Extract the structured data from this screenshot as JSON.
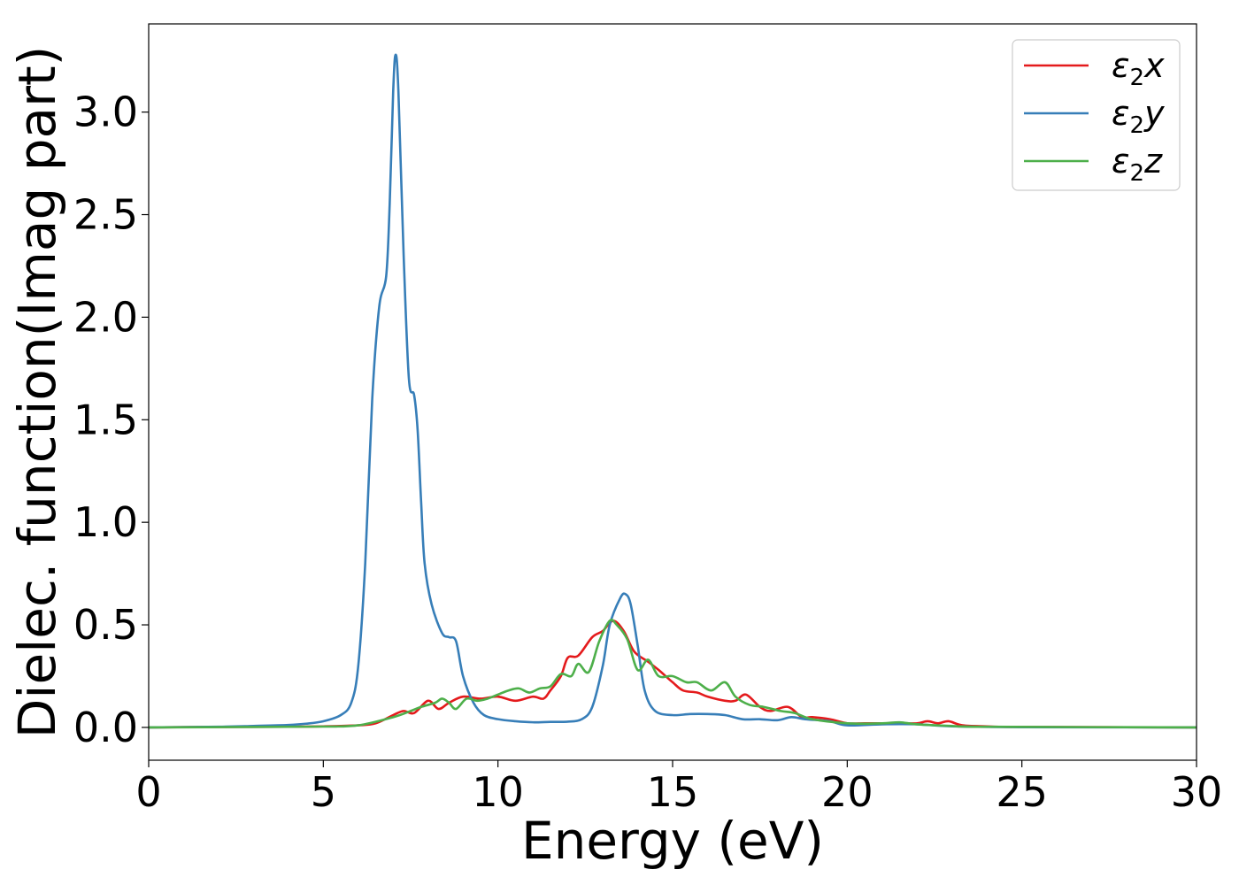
{
  "chart_data": {
    "type": "line",
    "title": "",
    "xlabel": "Energy (eV)",
    "ylabel": "Dielec. function(Imag part)",
    "xlim": [
      0,
      30
    ],
    "ylim": [
      -0.16,
      3.43
    ],
    "xticks": [
      0,
      5,
      10,
      15,
      20,
      25,
      30
    ],
    "xtick_labels": [
      "0",
      "5",
      "10",
      "15",
      "20",
      "25",
      "30"
    ],
    "yticks": [
      0.0,
      0.5,
      1.0,
      1.5,
      2.0,
      2.5,
      3.0
    ],
    "ytick_labels": [
      "0.0",
      "0.5",
      "1.0",
      "1.5",
      "2.0",
      "2.5",
      "3.0"
    ],
    "grid": false,
    "legend_position": "top-right",
    "series": [
      {
        "name": "ε2x",
        "name_base": "ε",
        "name_sub": "2",
        "name_suffix": "x",
        "color": "#e41a1c",
        "points": [
          [
            0,
            0
          ],
          [
            2,
            0.002
          ],
          [
            4,
            0.003
          ],
          [
            5,
            0.005
          ],
          [
            6,
            0.01
          ],
          [
            6.5,
            0.02
          ],
          [
            7,
            0.06
          ],
          [
            7.3,
            0.08
          ],
          [
            7.6,
            0.07
          ],
          [
            8,
            0.13
          ],
          [
            8.3,
            0.09
          ],
          [
            8.6,
            0.12
          ],
          [
            9,
            0.15
          ],
          [
            9.5,
            0.14
          ],
          [
            10,
            0.15
          ],
          [
            10.5,
            0.13
          ],
          [
            11,
            0.15
          ],
          [
            11.3,
            0.14
          ],
          [
            11.5,
            0.18
          ],
          [
            11.8,
            0.25
          ],
          [
            12,
            0.34
          ],
          [
            12.3,
            0.35
          ],
          [
            12.7,
            0.44
          ],
          [
            13,
            0.47
          ],
          [
            13.3,
            0.52
          ],
          [
            13.6,
            0.47
          ],
          [
            13.9,
            0.37
          ],
          [
            14.3,
            0.32
          ],
          [
            14.6,
            0.28
          ],
          [
            15,
            0.22
          ],
          [
            15.3,
            0.18
          ],
          [
            15.7,
            0.17
          ],
          [
            16,
            0.15
          ],
          [
            16.5,
            0.13
          ],
          [
            16.8,
            0.13
          ],
          [
            17.1,
            0.16
          ],
          [
            17.5,
            0.1
          ],
          [
            17.8,
            0.08
          ],
          [
            18.3,
            0.1
          ],
          [
            18.7,
            0.05
          ],
          [
            19,
            0.05
          ],
          [
            19.5,
            0.04
          ],
          [
            20,
            0.02
          ],
          [
            20.5,
            0.02
          ],
          [
            21,
            0.02
          ],
          [
            21.5,
            0.02
          ],
          [
            22,
            0.02
          ],
          [
            22.3,
            0.03
          ],
          [
            22.6,
            0.02
          ],
          [
            22.9,
            0.03
          ],
          [
            23.3,
            0.01
          ],
          [
            24,
            0.005
          ],
          [
            25,
            0.002
          ],
          [
            30,
            0
          ]
        ]
      },
      {
        "name": "ε2y",
        "name_base": "ε",
        "name_sub": "2",
        "name_suffix": "y",
        "color": "#377eb8",
        "points": [
          [
            0,
            0
          ],
          [
            2,
            0.003
          ],
          [
            3,
            0.007
          ],
          [
            4,
            0.012
          ],
          [
            4.5,
            0.018
          ],
          [
            5,
            0.03
          ],
          [
            5.5,
            0.06
          ],
          [
            5.8,
            0.12
          ],
          [
            6,
            0.3
          ],
          [
            6.2,
            0.8
          ],
          [
            6.4,
            1.6
          ],
          [
            6.6,
            2.05
          ],
          [
            6.8,
            2.2
          ],
          [
            6.9,
            2.55
          ],
          [
            7,
            3.1
          ],
          [
            7.07,
            3.28
          ],
          [
            7.15,
            3.1
          ],
          [
            7.3,
            2.3
          ],
          [
            7.45,
            1.7
          ],
          [
            7.6,
            1.62
          ],
          [
            7.7,
            1.45
          ],
          [
            7.8,
            1.1
          ],
          [
            7.9,
            0.8
          ],
          [
            8.1,
            0.6
          ],
          [
            8.4,
            0.46
          ],
          [
            8.6,
            0.44
          ],
          [
            8.8,
            0.42
          ],
          [
            9,
            0.25
          ],
          [
            9.3,
            0.12
          ],
          [
            9.6,
            0.06
          ],
          [
            10,
            0.04
          ],
          [
            10.5,
            0.03
          ],
          [
            11,
            0.025
          ],
          [
            11.5,
            0.027
          ],
          [
            12,
            0.028
          ],
          [
            12.4,
            0.04
          ],
          [
            12.7,
            0.1
          ],
          [
            13,
            0.3
          ],
          [
            13.2,
            0.5
          ],
          [
            13.5,
            0.63
          ],
          [
            13.65,
            0.65
          ],
          [
            13.8,
            0.6
          ],
          [
            14,
            0.4
          ],
          [
            14.2,
            0.18
          ],
          [
            14.5,
            0.08
          ],
          [
            15,
            0.06
          ],
          [
            15.5,
            0.065
          ],
          [
            16,
            0.065
          ],
          [
            16.5,
            0.06
          ],
          [
            17,
            0.04
          ],
          [
            17.5,
            0.04
          ],
          [
            18,
            0.035
          ],
          [
            18.4,
            0.05
          ],
          [
            18.8,
            0.04
          ],
          [
            19.5,
            0.03
          ],
          [
            20,
            0.01
          ],
          [
            21,
            0.015
          ],
          [
            22,
            0.015
          ],
          [
            23,
            0.005
          ],
          [
            25,
            0.001
          ],
          [
            30,
            0
          ]
        ]
      },
      {
        "name": "ε2z",
        "name_base": "ε",
        "name_sub": "2",
        "name_suffix": "z",
        "color": "#4daf4a",
        "points": [
          [
            0,
            0
          ],
          [
            3,
            0.002
          ],
          [
            5,
            0.004
          ],
          [
            6,
            0.01
          ],
          [
            7,
            0.05
          ],
          [
            7.5,
            0.08
          ],
          [
            7.8,
            0.1
          ],
          [
            8.2,
            0.12
          ],
          [
            8.4,
            0.14
          ],
          [
            8.6,
            0.12
          ],
          [
            8.8,
            0.09
          ],
          [
            9.1,
            0.14
          ],
          [
            9.4,
            0.13
          ],
          [
            9.7,
            0.14
          ],
          [
            10,
            0.16
          ],
          [
            10.3,
            0.18
          ],
          [
            10.6,
            0.19
          ],
          [
            10.9,
            0.17
          ],
          [
            11.2,
            0.19
          ],
          [
            11.5,
            0.2
          ],
          [
            11.8,
            0.26
          ],
          [
            12.1,
            0.25
          ],
          [
            12.3,
            0.31
          ],
          [
            12.6,
            0.27
          ],
          [
            12.9,
            0.42
          ],
          [
            13.2,
            0.52
          ],
          [
            13.4,
            0.5
          ],
          [
            13.7,
            0.43
          ],
          [
            14,
            0.28
          ],
          [
            14.3,
            0.33
          ],
          [
            14.6,
            0.25
          ],
          [
            15,
            0.25
          ],
          [
            15.4,
            0.22
          ],
          [
            15.7,
            0.22
          ],
          [
            16.1,
            0.18
          ],
          [
            16.5,
            0.22
          ],
          [
            16.8,
            0.15
          ],
          [
            17.2,
            0.11
          ],
          [
            17.6,
            0.1
          ],
          [
            18.1,
            0.08
          ],
          [
            18.5,
            0.07
          ],
          [
            19,
            0.04
          ],
          [
            20,
            0.02
          ],
          [
            21,
            0.02
          ],
          [
            21.5,
            0.025
          ],
          [
            22,
            0.015
          ],
          [
            23,
            0.007
          ],
          [
            24,
            0.003
          ],
          [
            30,
            0
          ]
        ]
      }
    ]
  }
}
